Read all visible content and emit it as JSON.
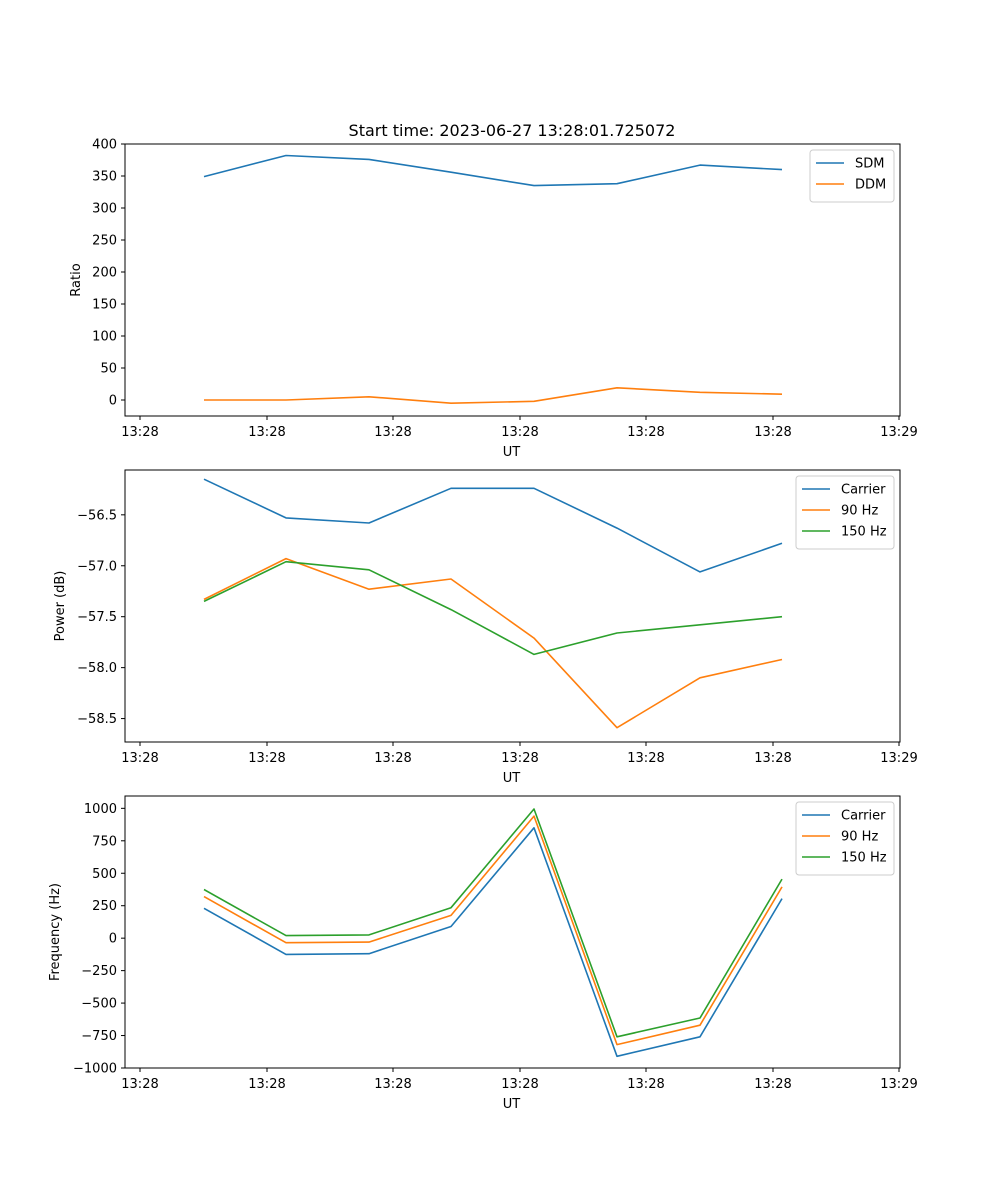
{
  "figure": {
    "title": "Start time: 2023-06-27 13:28:01.725072"
  },
  "colors": {
    "blue": "#1f77b4",
    "orange": "#ff7f0e",
    "green": "#2ca02c"
  },
  "chart_data": [
    {
      "type": "line",
      "title": "Start time: 2023-06-27 13:28:01.725072",
      "xlabel": "UT",
      "ylabel": "Ratio",
      "x_ticks": [
        "13:28",
        "13:28",
        "13:28",
        "13:28",
        "13:28",
        "13:28",
        "13:29"
      ],
      "ylim": [
        -25,
        400
      ],
      "y_ticks": [
        0,
        50,
        100,
        150,
        200,
        250,
        300,
        350,
        400
      ],
      "legend_position": "top-right",
      "series": [
        {
          "name": "SDM",
          "color": "#1f77b4",
          "values": [
            349,
            382,
            376,
            356,
            335,
            338,
            367,
            360
          ]
        },
        {
          "name": "DDM",
          "color": "#ff7f0e",
          "values": [
            0,
            0,
            5,
            -5,
            -2,
            19,
            12,
            9
          ]
        }
      ]
    },
    {
      "type": "line",
      "title": "",
      "xlabel": "UT",
      "ylabel": "Power (dB)",
      "x_ticks": [
        "13:28",
        "13:28",
        "13:28",
        "13:28",
        "13:28",
        "13:28",
        "13:29"
      ],
      "ylim": [
        -58.73,
        -56.06
      ],
      "y_ticks": [
        -58.5,
        -58.0,
        -57.5,
        -57.0,
        -56.5
      ],
      "y_tick_labels": [
        "−58.5",
        "−58.0",
        "−57.5",
        "−57.0",
        "−56.5"
      ],
      "legend_position": "top-right",
      "series": [
        {
          "name": "Carrier",
          "color": "#1f77b4",
          "values": [
            -56.15,
            -56.53,
            -56.58,
            -56.24,
            -56.24,
            -56.63,
            -57.06,
            -56.78
          ]
        },
        {
          "name": "90 Hz",
          "color": "#ff7f0e",
          "values": [
            -57.33,
            -56.93,
            -57.23,
            -57.13,
            -57.71,
            -58.59,
            -58.1,
            -57.92
          ]
        },
        {
          "name": "150 Hz",
          "color": "#2ca02c",
          "values": [
            -57.35,
            -56.96,
            -57.04,
            -57.43,
            -57.87,
            -57.66,
            -57.58,
            -57.5
          ]
        }
      ]
    },
    {
      "type": "line",
      "title": "",
      "xlabel": "UT",
      "ylabel": "Frequency (Hz)",
      "x_ticks": [
        "13:28",
        "13:28",
        "13:28",
        "13:28",
        "13:28",
        "13:28",
        "13:29"
      ],
      "ylim": [
        -1000,
        1095
      ],
      "y_ticks": [
        -1000,
        -750,
        -500,
        -250,
        0,
        250,
        500,
        750,
        1000
      ],
      "y_tick_labels": [
        "−1000",
        "−750",
        "−500",
        "−250",
        "0",
        "250",
        "500",
        "750",
        "1000"
      ],
      "legend_position": "top-right",
      "series": [
        {
          "name": "Carrier",
          "color": "#1f77b4",
          "values": [
            230,
            -125,
            -120,
            90,
            850,
            -910,
            -760,
            305
          ]
        },
        {
          "name": "90 Hz",
          "color": "#ff7f0e",
          "values": [
            320,
            -35,
            -30,
            175,
            940,
            -820,
            -670,
            395
          ]
        },
        {
          "name": "150 Hz",
          "color": "#2ca02c",
          "values": [
            375,
            20,
            25,
            235,
            995,
            -760,
            -615,
            455
          ]
        }
      ]
    }
  ]
}
